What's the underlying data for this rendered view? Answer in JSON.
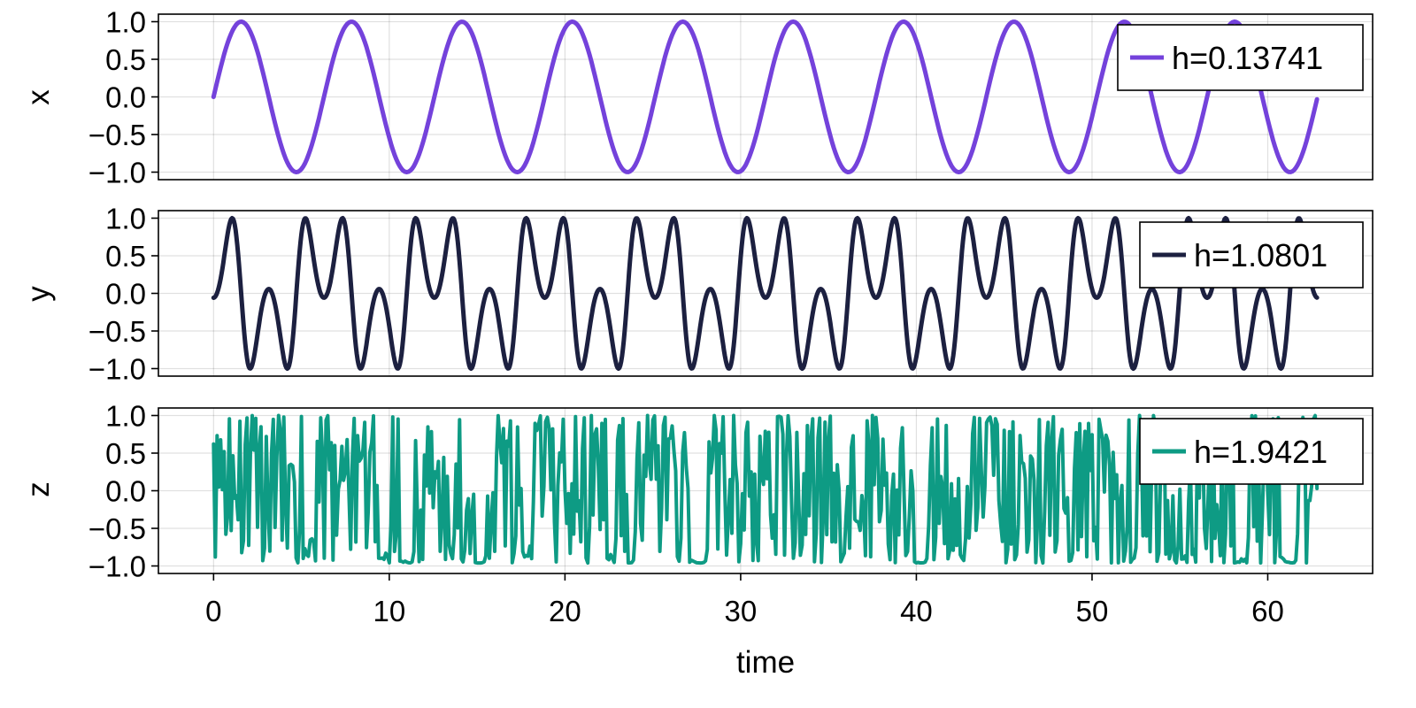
{
  "chart_data": {
    "type": "line",
    "x_label": "time",
    "x_range": [
      -3.14,
      65.97
    ],
    "x_ticks": [
      0,
      10,
      20,
      30,
      40,
      50,
      60
    ],
    "x_tick_labels": [
      "0",
      "10",
      "20",
      "30",
      "40",
      "50",
      "60"
    ],
    "y_range": [
      -1.1,
      1.1
    ],
    "y_ticks": [
      1.0,
      0.5,
      0.0,
      -0.5,
      -1.0
    ],
    "y_tick_labels": [
      "1.0",
      "0.5",
      "0.0",
      "−0.5",
      "−1.0"
    ],
    "t_range": [
      0,
      62.83
    ],
    "panels": [
      {
        "y_label": "x",
        "series": {
          "name": "h=0.13741",
          "color": "#7442db",
          "formula": "sin(t)",
          "sample_step": 0.1
        }
      },
      {
        "y_label": "y",
        "series": {
          "name": "h=1.0801",
          "color": "#1c2040",
          "formula": "sin(3.2*cos(t))",
          "sample_step": 0.05
        }
      },
      {
        "y_label": "z",
        "series": {
          "name": "h=1.9421",
          "color": "#0e9b84",
          "formula": "chaotic-iteration",
          "sample_step": 0.1
        }
      }
    ]
  }
}
